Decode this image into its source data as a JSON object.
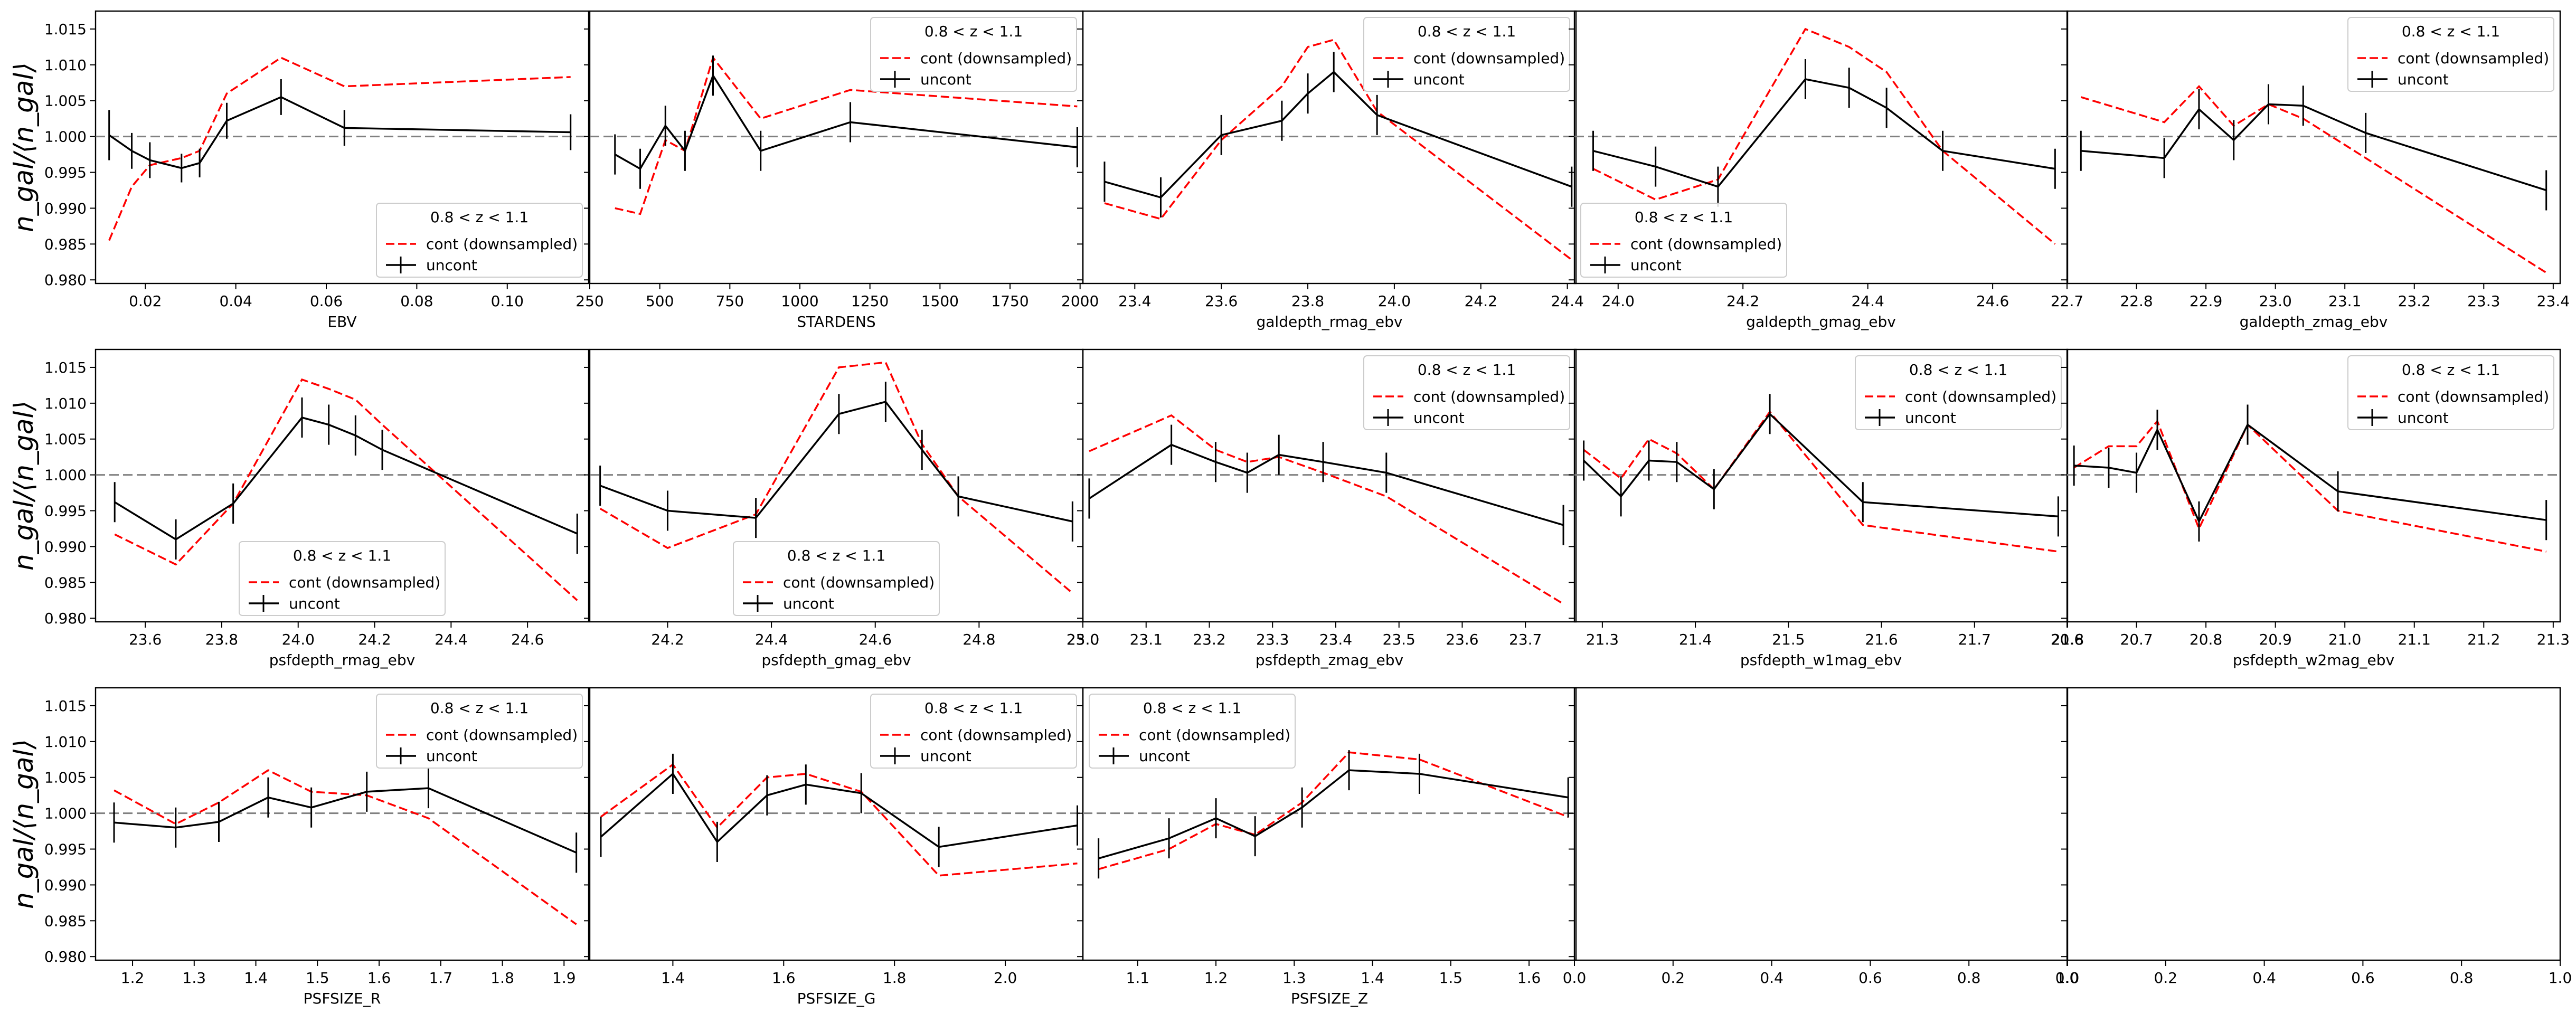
{
  "figure": {
    "ylabel": "n_gal/⟨n_gal⟩",
    "ylim": [
      0.9795,
      1.0175
    ],
    "yticks": [
      "1.015",
      "1.010",
      "1.005",
      "1.000",
      "0.995",
      "0.990",
      "0.985",
      "0.980"
    ],
    "ytick_values": [
      1.015,
      1.01,
      1.005,
      1.0,
      0.995,
      0.99,
      0.985,
      0.98
    ],
    "colors": {
      "cont": "#ff0000",
      "uncont": "#000000",
      "reference": "#808080"
    },
    "legend": {
      "title": "0.8 < z < 1.1",
      "cont_label": "cont (downsampled)",
      "uncont_label": "uncont"
    }
  },
  "chart_data": [
    {
      "type": "line",
      "xlabel": "EBV",
      "xlim": [
        0.009,
        0.118
      ],
      "xticks": [
        "0.02",
        "0.04",
        "0.06",
        "0.08",
        "0.10"
      ],
      "xtick_values": [
        0.02,
        0.04,
        0.06,
        0.08,
        0.1
      ],
      "legend_loc": "lower-right",
      "series": [
        {
          "name": "cont (downsampled)",
          "style": "dashed",
          "x": [
            0.012,
            0.017,
            0.021,
            0.028,
            0.032,
            0.038,
            0.05,
            0.064,
            0.114
          ],
          "y": [
            0.9855,
            0.993,
            0.996,
            0.997,
            0.998,
            1.006,
            1.011,
            1.007,
            1.0083
          ]
        },
        {
          "name": "uncont",
          "style": "errorbar",
          "x": [
            0.012,
            0.017,
            0.021,
            0.028,
            0.032,
            0.038,
            0.05,
            0.064,
            0.114
          ],
          "y": [
            1.0002,
            0.998,
            0.9967,
            0.9956,
            0.9963,
            1.0022,
            1.0055,
            1.0012,
            1.0006
          ],
          "err": [
            0.0035,
            0.0025,
            0.0025,
            0.002,
            0.002,
            0.0025,
            0.0025,
            0.0025,
            0.0025
          ]
        }
      ]
    },
    {
      "type": "line",
      "xlabel": "STARDENS",
      "xlim": [
        250,
        2010
      ],
      "xticks": [
        "250",
        "500",
        "750",
        "1000",
        "1250",
        "1500",
        "1750",
        "2000"
      ],
      "xtick_values": [
        250,
        500,
        750,
        1000,
        1250,
        1500,
        1750,
        2000
      ],
      "legend_loc": "upper-right",
      "series": [
        {
          "name": "cont (downsampled)",
          "style": "dashed",
          "x": [
            340,
            430,
            520,
            590,
            690,
            860,
            1180,
            1990
          ],
          "y": [
            0.99,
            0.9892,
            0.9995,
            0.998,
            1.011,
            1.0025,
            1.0065,
            1.0042
          ]
        },
        {
          "name": "uncont",
          "style": "errorbar",
          "x": [
            340,
            430,
            520,
            590,
            690,
            860,
            1180,
            1990
          ],
          "y": [
            0.9975,
            0.9955,
            1.0015,
            0.998,
            1.0085,
            0.998,
            1.002,
            0.9985
          ]
        },
        {
          "err": [
            0.004,
            0.003,
            0.003,
            0.002,
            0.004,
            0.003,
            0.003,
            0.003
          ]
        }
      ]
    },
    {
      "type": "line",
      "xlabel": "galdepth_rmag_ebv",
      "xlim": [
        23.28,
        24.42
      ],
      "xticks": [
        "23.4",
        "23.6",
        "23.8",
        "24.0",
        "24.2",
        "24.4"
      ],
      "xtick_values": [
        23.4,
        23.6,
        23.8,
        24.0,
        24.2,
        24.4
      ],
      "legend_loc": "upper-right",
      "series": [
        {
          "name": "cont (downsampled)",
          "style": "dashed",
          "x": [
            23.33,
            23.46,
            23.6,
            23.74,
            23.8,
            23.86,
            23.96,
            24.41
          ],
          "y": [
            0.9907,
            0.9885,
            0.9995,
            1.007,
            1.0125,
            1.0135,
            1.0035,
            0.9828
          ]
        },
        {
          "name": "uncont",
          "style": "errorbar",
          "x": [
            23.33,
            23.46,
            23.6,
            23.74,
            23.8,
            23.86,
            23.96,
            24.41
          ],
          "y": [
            0.9937,
            0.9915,
            1.0002,
            1.0022,
            1.006,
            1.009,
            1.003,
            0.993
          ]
        }
      ]
    },
    {
      "type": "line",
      "xlabel": "galdepth_gmag_ebv",
      "xlim": [
        23.93,
        24.72
      ],
      "xticks": [
        "24.0",
        "24.2",
        "24.4",
        "24.6"
      ],
      "xtick_values": [
        24.0,
        24.2,
        24.4,
        24.6
      ],
      "legend_loc": "lower-left",
      "series": [
        {
          "name": "cont (downsampled)",
          "style": "dashed",
          "x": [
            23.96,
            24.06,
            24.16,
            24.3,
            24.37,
            24.43,
            24.52,
            24.7
          ],
          "y": [
            0.9955,
            0.9912,
            0.994,
            1.015,
            1.0125,
            1.009,
            0.998,
            0.985
          ]
        },
        {
          "name": "uncont",
          "style": "errorbar",
          "x": [
            23.96,
            24.06,
            24.16,
            24.3,
            24.37,
            24.43,
            24.52,
            24.7
          ],
          "y": [
            0.998,
            0.9958,
            0.993,
            1.008,
            1.0068,
            1.004,
            0.998,
            0.9955
          ]
        }
      ]
    },
    {
      "type": "line",
      "xlabel": "galdepth_zmag_ebv",
      "xlim": [
        22.7,
        23.41
      ],
      "xticks": [
        "22.7",
        "22.8",
        "22.9",
        "23.0",
        "23.1",
        "23.2",
        "23.3",
        "23.4"
      ],
      "xtick_values": [
        22.7,
        22.8,
        22.9,
        23.0,
        23.1,
        23.2,
        23.3,
        23.4
      ],
      "legend_loc": "upper-right",
      "series": [
        {
          "name": "cont (downsampled)",
          "style": "dashed",
          "x": [
            22.72,
            22.84,
            22.89,
            22.94,
            22.99,
            23.04,
            23.13,
            23.39
          ],
          "y": [
            1.0055,
            1.002,
            1.007,
            1.0015,
            1.0045,
            1.0025,
            0.997,
            0.981
          ]
        },
        {
          "name": "uncont",
          "style": "errorbar",
          "x": [
            22.72,
            22.84,
            22.89,
            22.94,
            22.99,
            23.04,
            23.13,
            23.39
          ],
          "y": [
            0.998,
            0.997,
            1.0038,
            0.9995,
            1.0045,
            1.0043,
            1.0005,
            0.9925
          ]
        }
      ]
    },
    {
      "type": "line",
      "xlabel": "psfdepth_rmag_ebv",
      "xlim": [
        23.47,
        24.76
      ],
      "xticks": [
        "23.6",
        "23.8",
        "24.0",
        "24.2",
        "24.4",
        "24.6"
      ],
      "xtick_values": [
        23.6,
        23.8,
        24.0,
        24.2,
        24.4,
        24.6
      ],
      "legend_loc": "lower-center",
      "series": [
        {
          "name": "cont (downsampled)",
          "style": "dashed",
          "x": [
            23.52,
            23.68,
            23.83,
            24.01,
            24.08,
            24.15,
            24.22,
            24.73
          ],
          "y": [
            0.9917,
            0.9875,
            0.996,
            1.0133,
            1.012,
            1.0105,
            1.007,
            0.9825
          ]
        },
        {
          "name": "uncont",
          "style": "errorbar",
          "x": [
            23.52,
            23.68,
            23.83,
            24.01,
            24.08,
            24.15,
            24.22,
            24.73
          ],
          "y": [
            0.9962,
            0.991,
            0.996,
            1.008,
            1.007,
            1.0055,
            1.0035,
            0.9918
          ]
        }
      ]
    },
    {
      "type": "line",
      "xlabel": "psfdepth_gmag_ebv",
      "xlim": [
        24.05,
        25.0
      ],
      "xticks": [
        "24.2",
        "24.4",
        "24.6",
        "24.8",
        "25.0"
      ],
      "xtick_values": [
        24.2,
        24.4,
        24.6,
        24.8,
        25.0
      ],
      "legend_loc": "lower-center",
      "series": [
        {
          "name": "cont (downsampled)",
          "style": "dashed",
          "x": [
            24.07,
            24.2,
            24.37,
            24.53,
            24.62,
            24.69,
            24.76,
            24.98
          ],
          "y": [
            0.9953,
            0.9898,
            0.9945,
            1.015,
            1.0157,
            1.0043,
            0.997,
            0.9835
          ]
        },
        {
          "name": "uncont",
          "style": "errorbar",
          "x": [
            24.07,
            24.2,
            24.37,
            24.53,
            24.62,
            24.69,
            24.76,
            24.98
          ],
          "y": [
            0.9985,
            0.995,
            0.994,
            1.0085,
            1.0102,
            1.0035,
            0.997,
            0.9935
          ]
        }
      ]
    },
    {
      "type": "line",
      "xlabel": "psfdepth_zmag_ebv",
      "xlim": [
        23.0,
        23.78
      ],
      "xticks": [
        "23.0",
        "23.1",
        "23.2",
        "23.3",
        "23.4",
        "23.5",
        "23.6",
        "23.7"
      ],
      "xtick_values": [
        23.0,
        23.1,
        23.2,
        23.3,
        23.4,
        23.5,
        23.6,
        23.7
      ],
      "legend_loc": "upper-right",
      "series": [
        {
          "name": "cont (downsampled)",
          "style": "dashed",
          "x": [
            23.01,
            23.14,
            23.21,
            23.26,
            23.31,
            23.38,
            23.48,
            23.76
          ],
          "y": [
            1.0033,
            1.0083,
            1.0035,
            1.0018,
            1.0025,
            1.0003,
            0.997,
            0.982
          ]
        },
        {
          "name": "uncont",
          "style": "errorbar",
          "x": [
            23.01,
            23.14,
            23.21,
            23.26,
            23.31,
            23.38,
            23.48,
            23.76
          ],
          "y": [
            0.9967,
            1.0042,
            1.0018,
            1.0003,
            1.0028,
            1.0018,
            1.0003,
            0.993
          ]
        }
      ]
    },
    {
      "type": "line",
      "xlabel": "psfdepth_w1mag_ebv",
      "xlim": [
        21.27,
        21.8
      ],
      "xticks": [
        "21.3",
        "21.4",
        "21.5",
        "21.6",
        "21.7",
        "21.8"
      ],
      "xtick_values": [
        21.3,
        21.4,
        21.5,
        21.6,
        21.7,
        21.8
      ],
      "legend_loc": "upper-right",
      "series": [
        {
          "name": "cont (downsampled)",
          "style": "dashed",
          "x": [
            21.28,
            21.32,
            21.35,
            21.38,
            21.42,
            21.48,
            21.58,
            21.79
          ],
          "y": [
            1.0035,
            0.9995,
            1.005,
            1.003,
            0.998,
            1.0088,
            0.993,
            0.9893
          ]
        },
        {
          "name": "uncont",
          "style": "errorbar",
          "x": [
            21.28,
            21.32,
            21.35,
            21.38,
            21.42,
            21.48,
            21.58,
            21.79
          ],
          "y": [
            1.002,
            0.997,
            1.002,
            1.0018,
            0.998,
            1.0085,
            0.9962,
            0.9942
          ]
        }
      ]
    },
    {
      "type": "line",
      "xlabel": "psfdepth_w2mag_ebv",
      "xlim": [
        20.6,
        21.31
      ],
      "xticks": [
        "20.6",
        "20.7",
        "20.8",
        "20.9",
        "21.0",
        "21.1",
        "21.2",
        "21.3"
      ],
      "xtick_values": [
        20.6,
        20.7,
        20.8,
        20.9,
        21.0,
        21.1,
        21.2,
        21.3
      ],
      "legend_loc": "upper-right",
      "series": [
        {
          "name": "cont (downsampled)",
          "style": "dashed",
          "x": [
            20.61,
            20.66,
            20.7,
            20.73,
            20.79,
            20.86,
            20.99,
            21.29
          ],
          "y": [
            1.001,
            1.004,
            1.004,
            1.0075,
            0.9925,
            1.007,
            0.995,
            0.9893
          ]
        },
        {
          "name": "uncont",
          "style": "errorbar",
          "x": [
            20.61,
            20.66,
            20.7,
            20.73,
            20.79,
            20.86,
            20.99,
            21.29
          ],
          "y": [
            1.0013,
            1.001,
            1.0003,
            1.0063,
            0.9935,
            1.007,
            0.9977,
            0.9937
          ]
        }
      ]
    },
    {
      "type": "line",
      "xlabel": "PSFSIZE_R",
      "xlim": [
        1.14,
        1.94
      ],
      "xticks": [
        "1.2",
        "1.3",
        "1.4",
        "1.5",
        "1.6",
        "1.7",
        "1.8",
        "1.9"
      ],
      "xtick_values": [
        1.2,
        1.3,
        1.4,
        1.5,
        1.6,
        1.7,
        1.8,
        1.9
      ],
      "legend_loc": "upper-right",
      "series": [
        {
          "name": "cont (downsampled)",
          "style": "dashed",
          "x": [
            1.17,
            1.27,
            1.34,
            1.42,
            1.49,
            1.58,
            1.68,
            1.92
          ],
          "y": [
            1.0032,
            0.9985,
            1.0015,
            1.006,
            1.003,
            1.0025,
            0.9993,
            0.9845
          ]
        },
        {
          "name": "uncont",
          "style": "errorbar",
          "x": [
            1.17,
            1.27,
            1.34,
            1.42,
            1.49,
            1.58,
            1.68,
            1.92
          ],
          "y": [
            0.9987,
            0.998,
            0.9988,
            1.0022,
            1.0008,
            1.003,
            1.0035,
            0.9945
          ]
        }
      ]
    },
    {
      "type": "line",
      "xlabel": "PSFSIZE_G",
      "xlim": [
        1.25,
        2.14
      ],
      "xticks": [
        "1.4",
        "1.6",
        "1.8",
        "2.0"
      ],
      "xtick_values": [
        1.4,
        1.6,
        1.8,
        2.0
      ],
      "legend_loc": "upper-right",
      "series": [
        {
          "name": "cont (downsampled)",
          "style": "dashed",
          "x": [
            1.27,
            1.4,
            1.48,
            1.57,
            1.64,
            1.74,
            1.88,
            2.13
          ],
          "y": [
            0.9995,
            1.0068,
            0.998,
            1.005,
            1.0055,
            1.003,
            0.9913,
            0.993
          ]
        },
        {
          "name": "uncont",
          "style": "errorbar",
          "x": [
            1.27,
            1.4,
            1.48,
            1.57,
            1.64,
            1.74,
            1.88,
            2.13
          ],
          "y": [
            0.9967,
            1.0055,
            0.996,
            1.0025,
            1.004,
            1.0028,
            0.9953,
            0.9983
          ]
        }
      ]
    },
    {
      "type": "line",
      "xlabel": "PSFSIZE_Z",
      "xlim": [
        1.03,
        1.66
      ],
      "xticks": [
        "1.1",
        "1.2",
        "1.3",
        "1.4",
        "1.5",
        "1.6"
      ],
      "xtick_values": [
        1.1,
        1.2,
        1.3,
        1.4,
        1.5,
        1.6
      ],
      "legend_loc": "upper-left",
      "series": [
        {
          "name": "cont (downsampled)",
          "style": "dashed",
          "x": [
            1.05,
            1.14,
            1.2,
            1.25,
            1.31,
            1.37,
            1.46,
            1.65
          ],
          "y": [
            0.9922,
            0.995,
            0.9985,
            0.997,
            1.0015,
            1.0085,
            1.0075,
            0.9995
          ]
        },
        {
          "name": "uncont",
          "style": "errorbar",
          "x": [
            1.05,
            1.14,
            1.2,
            1.25,
            1.31,
            1.37,
            1.46,
            1.65
          ],
          "y": [
            0.9937,
            0.9965,
            0.9993,
            0.9968,
            1.0008,
            1.006,
            1.0055,
            1.0022
          ]
        }
      ]
    },
    {
      "type": "empty",
      "xlabel": "",
      "xlim": [
        0,
        1
      ],
      "xticks": [
        "0.0",
        "0.2",
        "0.4",
        "0.6",
        "0.8",
        "1.0"
      ],
      "xtick_values": [
        0.0,
        0.2,
        0.4,
        0.6,
        0.8,
        1.0
      ],
      "series": []
    },
    {
      "type": "empty",
      "xlabel": "",
      "xlim": [
        0,
        1
      ],
      "xticks": [
        "0.0",
        "0.2",
        "0.4",
        "0.6",
        "0.8",
        "1.0"
      ],
      "xtick_values": [
        0.0,
        0.2,
        0.4,
        0.6,
        0.8,
        1.0
      ],
      "series": []
    }
  ]
}
